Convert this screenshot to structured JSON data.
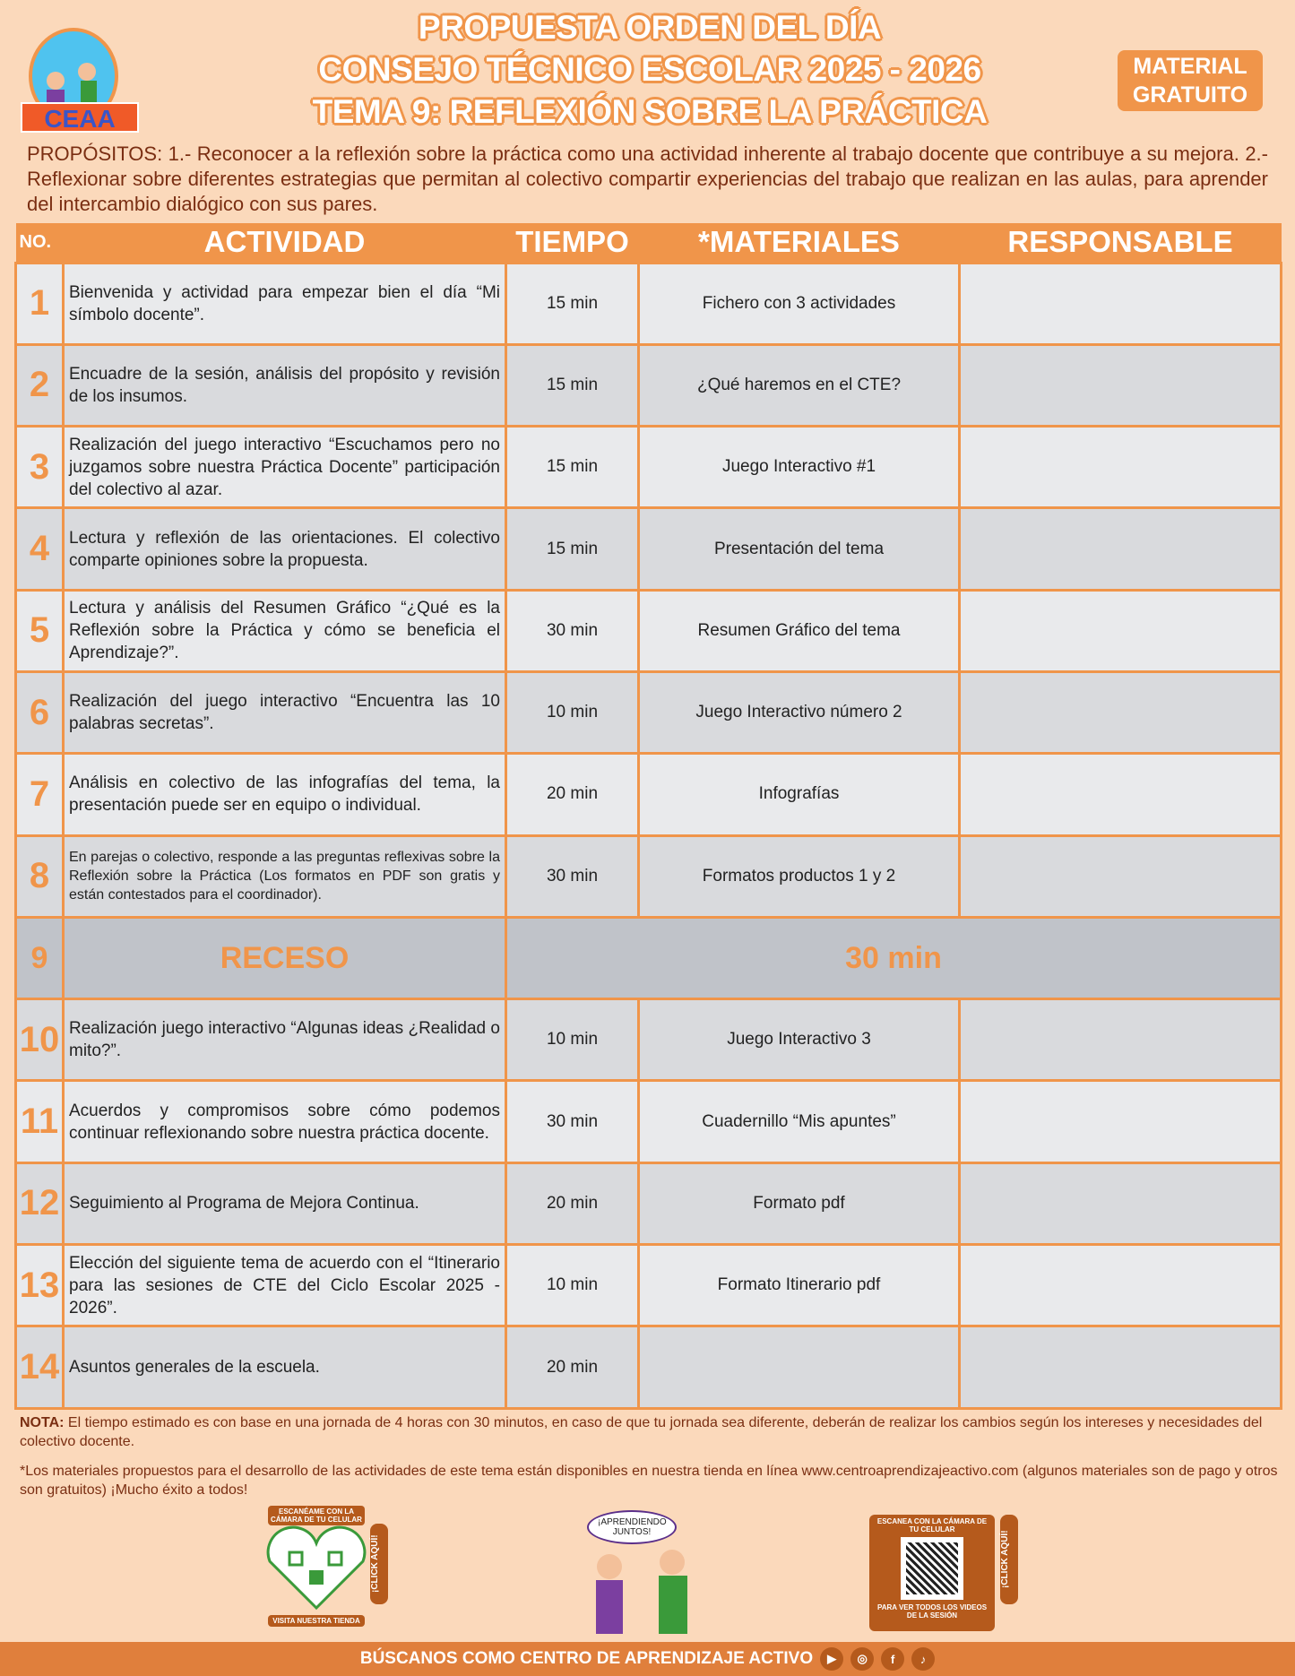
{
  "header": {
    "title_lines": [
      "PROPUESTA ORDEN DEL DÍA",
      "CONSEJO TÉCNICO ESCOLAR 2025 - 2026",
      "TEMA 9: REFLEXIÓN SOBRE LA PRÁCTICA"
    ],
    "logo_text": "CEAA",
    "logo_arc": "Centro de Aprendizaje Activo",
    "badge": "MATERIAL GRATUITO"
  },
  "purposes": "PROPÓSITOS: 1.- Reconocer a la reflexión sobre la práctica como una actividad inherente al trabajo docente que contribuye a su mejora. 2.- Reflexionar sobre diferentes estrategias que permitan al colectivo compartir experiencias del trabajo que realizan en las aulas, para aprender del intercambio dialógico con sus pares.",
  "table": {
    "headers": [
      "NO.",
      "ACTIVIDAD",
      "TIEMPO",
      "*MATERIALES",
      "RESPONSABLE"
    ],
    "rows": [
      {
        "no": "1",
        "actividad": "Bienvenida y actividad para empezar bien el día “Mi símbolo docente”.",
        "tiempo": "15 min",
        "materiales": "Fichero con 3 actividades",
        "responsable": ""
      },
      {
        "no": "2",
        "actividad": "Encuadre de la sesión, análisis del propósito y revisión de los insumos.",
        "tiempo": "15 min",
        "materiales": "¿Qué haremos en el CTE?",
        "responsable": ""
      },
      {
        "no": "3",
        "actividad": "Realización del juego interactivo “Escuchamos pero no juzgamos sobre nuestra Práctica Docente” participación del colectivo al azar.",
        "tiempo": "15 min",
        "materiales": "Juego Interactivo #1",
        "responsable": ""
      },
      {
        "no": "4",
        "actividad": "Lectura y reflexión de las orientaciones. El colectivo comparte opiniones sobre la propuesta.",
        "tiempo": "15 min",
        "materiales": "Presentación del tema",
        "responsable": ""
      },
      {
        "no": "5",
        "actividad": "Lectura y análisis del Resumen Gráfico “¿Qué es la Reflexión sobre la Práctica y cómo se beneficia el Aprendizaje?”.",
        "tiempo": "30 min",
        "materiales": "Resumen Gráfico del tema",
        "responsable": ""
      },
      {
        "no": "6",
        "actividad": "Realización del juego interactivo “Encuentra las 10 palabras secretas”.",
        "tiempo": "10 min",
        "materiales": "Juego Interactivo número 2",
        "responsable": ""
      },
      {
        "no": "7",
        "actividad": "Análisis en colectivo de las infografías del tema, la presentación puede ser en equipo o individual.",
        "tiempo": "20 min",
        "materiales": "Infografías",
        "responsable": ""
      },
      {
        "no": "8",
        "actividad": "En parejas o colectivo, responde a las preguntas reflexivas sobre la Reflexión sobre la Práctica (Los formatos en PDF son gratis y están contestados para el coordinador).",
        "tiempo": "30 min",
        "materiales": "Formatos productos 1 y 2",
        "responsable": ""
      },
      {
        "no": "9",
        "actividad": "RECESO",
        "tiempo": "30 min",
        "materiales": "",
        "responsable": ""
      },
      {
        "no": "10",
        "actividad": "Realización juego interactivo “Algunas ideas ¿Realidad o mito?”.",
        "tiempo": "10 min",
        "materiales": "Juego Interactivo 3",
        "responsable": ""
      },
      {
        "no": "11",
        "actividad": "Acuerdos y compromisos sobre cómo podemos continuar reflexionando sobre nuestra práctica docente.",
        "tiempo": "30 min",
        "materiales": "Cuadernillo “Mis apuntes”",
        "responsable": ""
      },
      {
        "no": "12",
        "actividad": "Seguimiento al Programa de Mejora Continua.",
        "tiempo": "20 min",
        "materiales": "Formato pdf",
        "responsable": ""
      },
      {
        "no": "13",
        "actividad": "Elección del siguiente tema de acuerdo con el “Itinerario para las sesiones de CTE del Ciclo Escolar 2025 - 2026”.",
        "tiempo": "10 min",
        "materiales": "Formato Itinerario pdf",
        "responsable": ""
      },
      {
        "no": "14",
        "actividad": "Asuntos generales de la escuela.",
        "tiempo": "20 min",
        "materiales": "",
        "responsable": ""
      }
    ]
  },
  "notes": {
    "nota_label": "NOTA:",
    "nota": " El tiempo estimado es con base en una jornada de 4 horas con 30 minutos, en caso de que tu jornada sea diferente, deberán de realizar los cambios según los intereses y necesidades del colectivo docente.",
    "materials": "*Los materiales propuestos para el desarrollo de las actividades de este tema están disponibles en nuestra tienda en línea www.centroaprendizajeactivo.com (algunos materiales son de pago y otros son gratuitos) ¡Mucho éxito a todos!"
  },
  "promo": {
    "qr1_top": "ESCANÉAME CON LA CÁMARA DE TU CELULAR",
    "qr1_bottom": "VISITA NUESTRA TIENDA",
    "click": "¡CLICK AQUÍ!",
    "bubble": "¡APRENDIENDO JUNTOS!",
    "qr2_top": "ESCANEA CON LA CÁMARA DE TU CELULAR",
    "qr2_bottom": "PARA VER TODOS LOS VIDEOS DE LA SESIÓN"
  },
  "footer": {
    "text": "BÚSCANOS COMO CENTRO DE APRENDIZAJE ACTIVO",
    "icons": [
      "youtube-icon",
      "instagram-icon",
      "facebook-icon",
      "tiktok-icon"
    ]
  },
  "colors": {
    "accent": "#f0954a",
    "background": "#fbd9bb",
    "text": "#7a2e12",
    "footer": "#e07f3c"
  }
}
